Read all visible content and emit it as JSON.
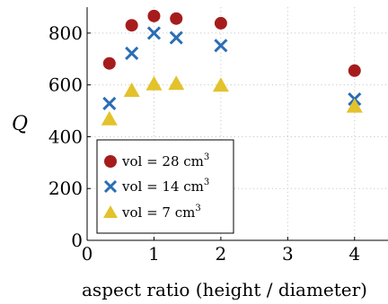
{
  "chart_data": {
    "type": "scatter",
    "title": "",
    "xlabel": "aspect ratio (height / diameter)",
    "ylabel": "Q",
    "xlim": [
      0,
      4.5
    ],
    "ylim": [
      0,
      900
    ],
    "x_ticks": [
      0,
      1,
      2,
      3,
      4
    ],
    "y_ticks": [
      0,
      200,
      400,
      600,
      800
    ],
    "grid": true,
    "legend_position": "bottom-left",
    "series": [
      {
        "name": "vol = 28 cm³",
        "label_main": "vol = 28 cm",
        "label_sup": "3",
        "marker": "circle",
        "color": "#a61c1c",
        "x": [
          0.333,
          0.667,
          1.0,
          1.333,
          2.0,
          4.0
        ],
        "y": [
          683,
          830,
          866,
          856,
          838,
          655
        ]
      },
      {
        "name": "vol = 14 cm³",
        "label_main": "vol = 14 cm",
        "label_sup": "3",
        "marker": "x",
        "color": "#2a6db5",
        "x": [
          0.333,
          0.667,
          1.0,
          1.333,
          2.0,
          4.0
        ],
        "y": [
          528,
          722,
          800,
          782,
          752,
          545
        ]
      },
      {
        "name": "vol = 7 cm³",
        "label_main": "vol = 7 cm",
        "label_sup": "3",
        "marker": "triangle",
        "color": "#e3c22b",
        "x": [
          0.333,
          0.667,
          1.0,
          1.333,
          2.0,
          4.0
        ],
        "y": [
          468,
          578,
          603,
          605,
          598,
          517
        ]
      }
    ]
  }
}
